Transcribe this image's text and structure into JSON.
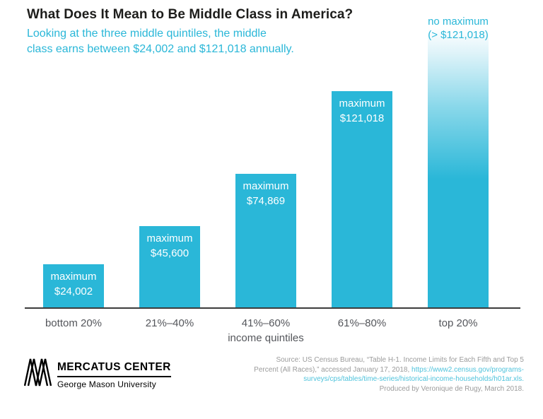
{
  "header": {
    "title": "What Does It Mean to Be Middle Class in America?",
    "subtitle_line1": "Looking at the three middle quintiles, the middle",
    "subtitle_line2": "class earns between $24,002 and $121,018 annually."
  },
  "chart_data": {
    "type": "bar",
    "title": "What Does It Mean to Be Middle Class in America?",
    "subtitle": "Looking at the three middle quintiles, the middle class earns between $24,002 and $121,018 annually.",
    "xlabel": "income quintiles",
    "ylabel": "",
    "categories": [
      "bottom 20%",
      "21%–40%",
      "41%–60%",
      "61%–80%",
      "top 20%"
    ],
    "values": [
      24002,
      45600,
      74869,
      121018,
      null
    ],
    "ylim": [
      0,
      155000
    ],
    "grid": false,
    "legend": false,
    "bar_color": "#2ab7d8",
    "bars": [
      {
        "category": "bottom 20%",
        "value": 24002,
        "label_line1": "maximum",
        "label_line2": "$24,002"
      },
      {
        "category": "21%–40%",
        "value": 45600,
        "label_line1": "maximum",
        "label_line2": "$45,600"
      },
      {
        "category": "41%–60%",
        "value": 74869,
        "label_line1": "maximum",
        "label_line2": "$74,869"
      },
      {
        "category": "61%–80%",
        "value": 121018,
        "label_line1": "maximum",
        "label_line2": "$121,018"
      },
      {
        "category": "top 20%",
        "value": null,
        "no_maximum": true,
        "label_line1": "no maximum",
        "label_line2": "(> $121,018)"
      }
    ]
  },
  "footer": {
    "logo": {
      "name": "MERCATUS CENTER",
      "subname": "George Mason University"
    },
    "source": {
      "line1": "Source: US Census Bureau, “Table H-1. Income Limits for Each Fifth and Top 5",
      "line2_gray": "Percent (All Races),” accessed January 17, 2018, ",
      "line2_link": "https://www2.census.gov/programs-",
      "line3_link": "surveys/cps/tables/time-series/historical-income-households/h01ar.xls.",
      "line4": "Produced by Veronique de Rugy, March 2018."
    }
  },
  "colors": {
    "accent_cyan": "#2ab7d8",
    "title_text": "#1d1d1b",
    "axis_text": "#54565b",
    "source_gray": "#9b9b9b",
    "bar_label_text": "#ffffff"
  }
}
